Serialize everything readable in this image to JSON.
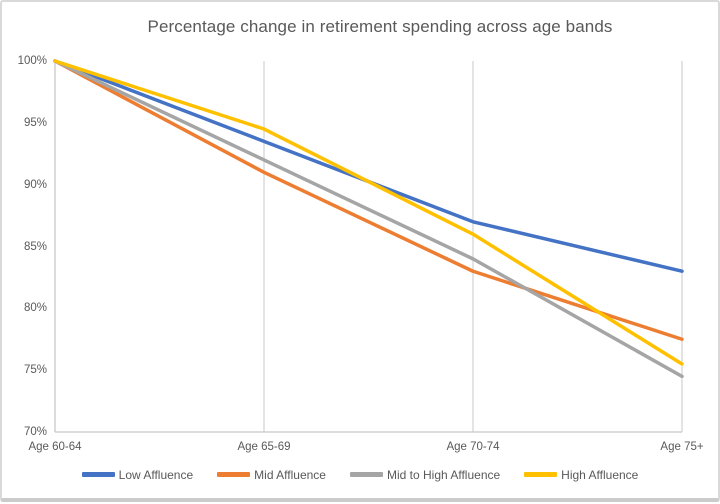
{
  "chart_data": {
    "type": "line",
    "title": "Percentage change in retirement spending across age bands",
    "categories": [
      "Age 60-64",
      "Age 65-69",
      "Age 70-74",
      "Age 75+"
    ],
    "series": [
      {
        "name": "Low Affluence",
        "color": "#4472C4",
        "values": [
          100,
          93.5,
          87,
          83
        ]
      },
      {
        "name": "Mid Affluence",
        "color": "#ED7D31",
        "values": [
          100,
          91,
          83,
          77.5
        ]
      },
      {
        "name": "Mid to High Affluence",
        "color": "#A5A5A5",
        "values": [
          100,
          92,
          84,
          74.5
        ]
      },
      {
        "name": "High Affluence",
        "color": "#FFC000",
        "values": [
          100,
          94.5,
          86,
          75.5
        ]
      }
    ],
    "y_axis": {
      "min": 70,
      "max": 100,
      "step": 5,
      "tick_labels": [
        "100%",
        "95%",
        "90%",
        "85%",
        "80%",
        "75%",
        "70%"
      ]
    },
    "x_axis": {
      "tick_labels": [
        "Age 60-64",
        "Age 65-69",
        "Age 70-74",
        "Age 75+"
      ]
    },
    "grid": {
      "vertical": true,
      "horizontal": false
    },
    "legend_position": "bottom"
  },
  "colors": {
    "text": "#595959",
    "gridline": "#D6D6D6",
    "axis_line": "#C8C8C8",
    "frame_border": "#D9D9D9",
    "background": "#FFFFFF"
  }
}
